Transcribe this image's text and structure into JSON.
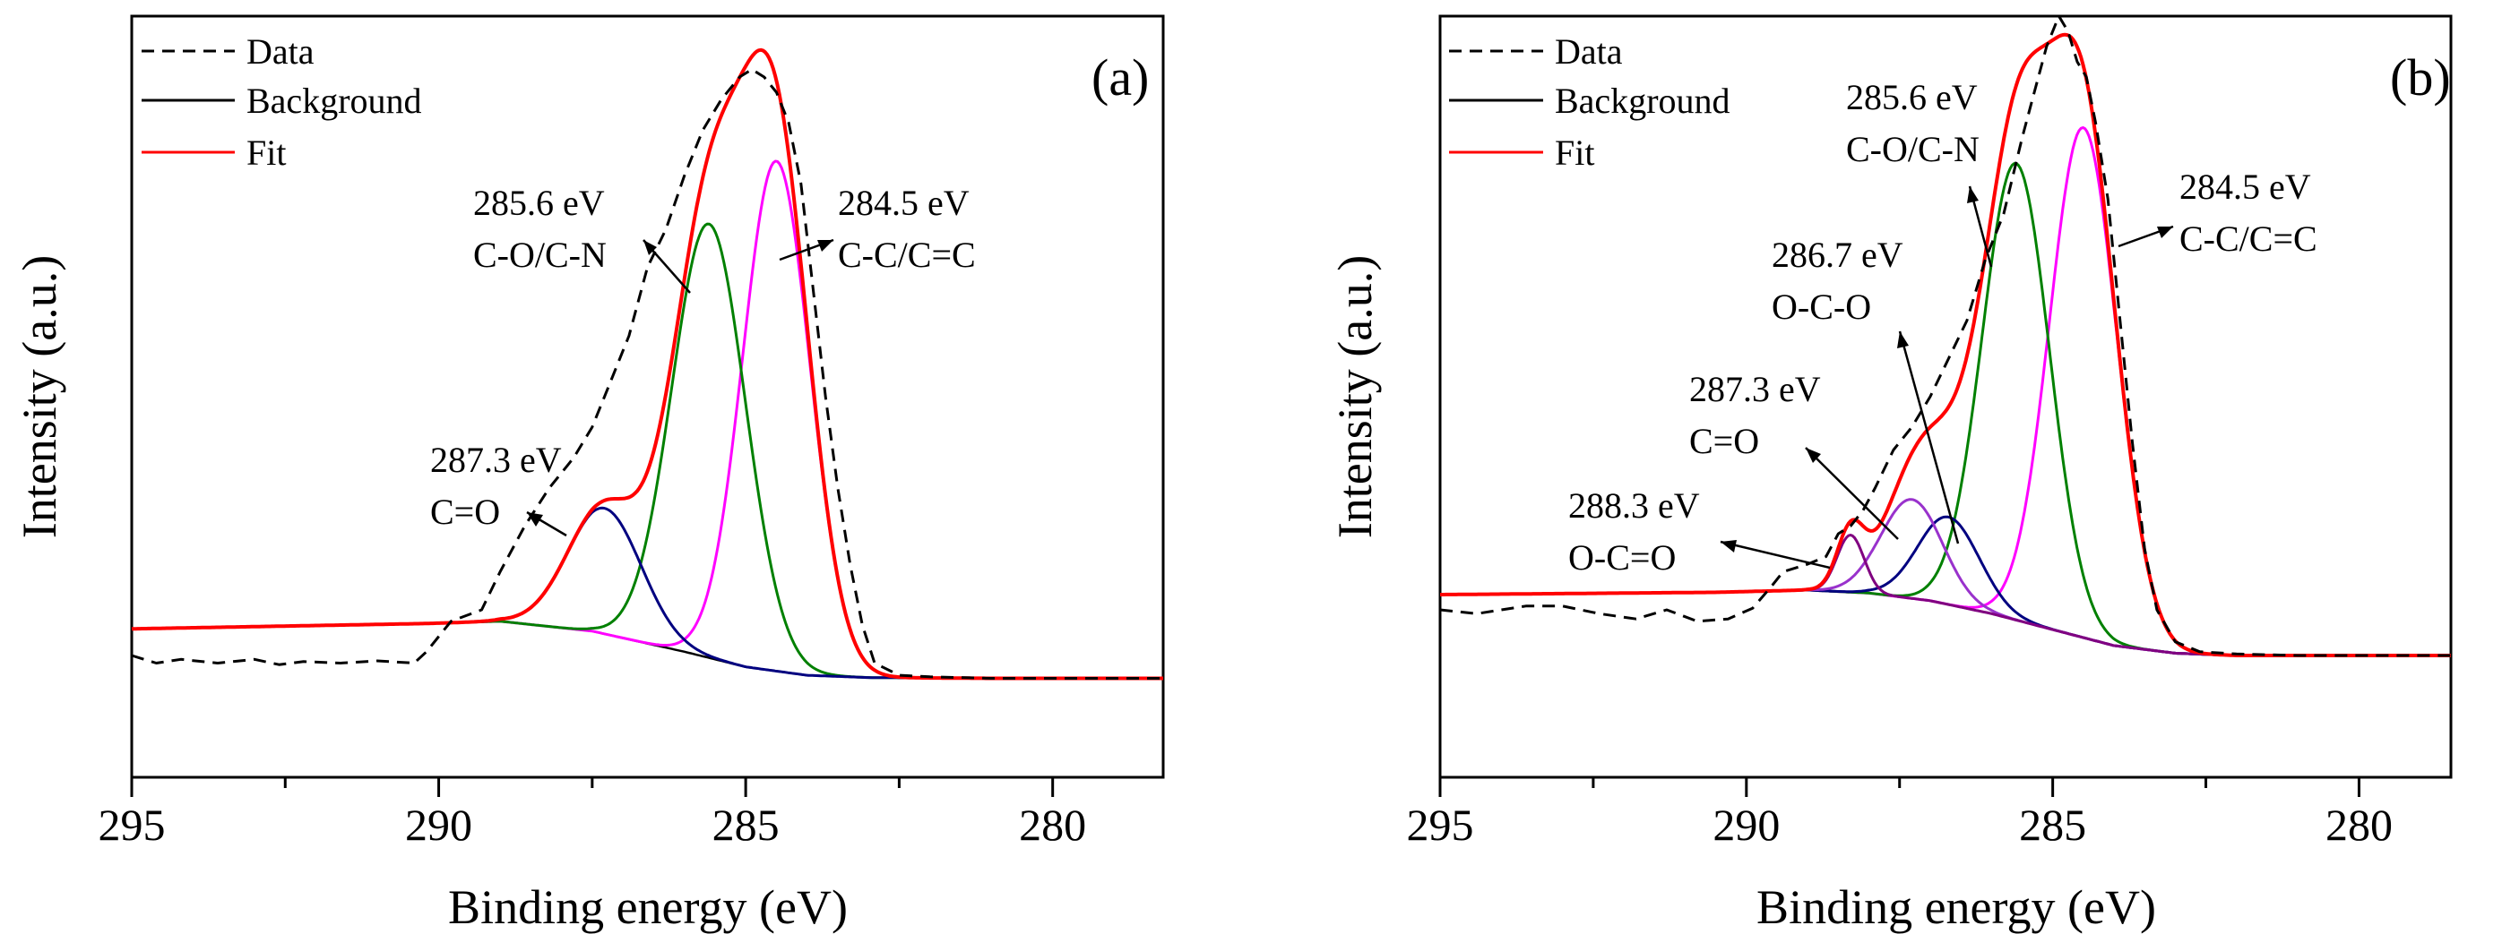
{
  "chart_data": [
    {
      "type": "line",
      "panel_label": "(a)",
      "xlabel": "Binding energy (eV)",
      "ylabel": "Intensity (a.u.)",
      "xlim": [
        295,
        278.2
      ],
      "ylim": [
        0,
        100
      ],
      "x_reversed": true,
      "xticks": [
        295,
        290,
        285,
        280
      ],
      "xtick_labels": [
        "295",
        "290",
        "285",
        "280"
      ],
      "legend": {
        "position": "top-left",
        "entries": [
          {
            "label": "Data",
            "style": "dashed",
            "color": "#000000"
          },
          {
            "label": "Background",
            "style": "solid",
            "color": "#000000"
          },
          {
            "label": "Fit",
            "style": "solid",
            "color": "#ff0000"
          }
        ]
      },
      "background": {
        "x": [
          295,
          290.2,
          289,
          287.5,
          286,
          285,
          284,
          283,
          281,
          278.2
        ],
        "y": [
          19.5,
          20.2,
          20.5,
          19.2,
          16.5,
          14.5,
          13.4,
          13.1,
          13.0,
          13.0
        ]
      },
      "peaks": [
        {
          "name": "C-C/C=C",
          "center": 284.5,
          "amplitude": 67,
          "sigma": 0.55,
          "color": "#ff00ff"
        },
        {
          "name": "C-O/C-N",
          "center": 285.6,
          "amplitude": 57,
          "sigma": 0.6,
          "color": "#008000"
        },
        {
          "name": "C=O",
          "center": 287.3,
          "amplitude": 16.5,
          "sigma": 0.6,
          "color": "#000080"
        }
      ],
      "fit_color": "#ff0000",
      "data_points": {
        "x": [
          295,
          294.6,
          294.2,
          293.6,
          293,
          292.6,
          292.2,
          291.6,
          291,
          290.4,
          290.2,
          289.8,
          289.3,
          289,
          288.6,
          288.2,
          287.8,
          287.5,
          287.2,
          286.9,
          286.6,
          286.3,
          286.0,
          285.7,
          285.4,
          285.1,
          284.9,
          284.7,
          284.5,
          284.3,
          284.1,
          283.9,
          283.7,
          283.5,
          283.3,
          283.1,
          282.9,
          282.5,
          282,
          281,
          280,
          278.2
        ],
        "y": [
          16,
          15,
          15.5,
          15,
          15.5,
          14.8,
          15.2,
          15,
          15.3,
          15,
          16.5,
          20.5,
          22,
          27,
          33,
          38,
          42,
          46,
          52,
          58,
          67,
          72,
          79,
          85,
          89,
          92,
          93,
          92,
          90,
          86,
          78,
          64,
          50,
          38,
          28,
          20,
          15,
          13.4,
          13.2,
          13,
          13,
          13
        ]
      },
      "annotations": [
        {
          "energy": "287.3 eV",
          "assignment": "C=O"
        },
        {
          "energy": "285.6 eV",
          "assignment": "C-O/C-N"
        },
        {
          "energy": "284.5 eV",
          "assignment": "C-C/C=C"
        }
      ]
    },
    {
      "type": "line",
      "panel_label": "(b)",
      "xlabel": "Binding energy (eV)",
      "ylabel": "Intensity (a.u.)",
      "xlim": [
        295,
        278.5
      ],
      "ylim": [
        0,
        100
      ],
      "x_reversed": true,
      "xticks": [
        295,
        290,
        285,
        280
      ],
      "xtick_labels": [
        "295",
        "290",
        "285",
        "280"
      ],
      "legend": {
        "position": "top-left",
        "entries": [
          {
            "label": "Data",
            "style": "dashed",
            "color": "#000000"
          },
          {
            "label": "Background",
            "style": "solid",
            "color": "#000000"
          },
          {
            "label": "Fit",
            "style": "solid",
            "color": "#ff0000"
          }
        ]
      },
      "background": {
        "x": [
          295,
          290.5,
          289,
          288,
          287,
          286,
          285,
          284,
          283,
          282,
          280,
          278.5
        ],
        "y": [
          24,
          24.3,
          24.6,
          24.2,
          23.2,
          21.5,
          19.4,
          17.3,
          16.3,
          16.0,
          16.0,
          16.0
        ]
      },
      "peaks": [
        {
          "name": "C-C/C=C",
          "center": 284.5,
          "amplitude": 67,
          "sigma": 0.55,
          "color": "#ff00ff"
        },
        {
          "name": "C-O/C-N",
          "center": 285.6,
          "amplitude": 60,
          "sigma": 0.55,
          "color": "#008000"
        },
        {
          "name": "O-C-O",
          "center": 286.7,
          "amplitude": 11.5,
          "sigma": 0.5,
          "color": "#000080"
        },
        {
          "name": "C=O",
          "center": 287.3,
          "amplitude": 13,
          "sigma": 0.5,
          "color": "#9932cc"
        },
        {
          "name": "O-C=O",
          "center": 288.3,
          "amplitude": 7.5,
          "sigma": 0.22,
          "color": "#800080"
        }
      ],
      "fit_color": "#ff0000",
      "data_points": {
        "x": [
          295,
          294.4,
          293.6,
          293,
          292.4,
          291.8,
          291.3,
          290.8,
          290.3,
          289.9,
          289.6,
          289.4,
          289,
          288.7,
          288.5,
          288.3,
          288.1,
          287.9,
          287.6,
          287.3,
          287.0,
          286.7,
          286.4,
          286.1,
          285.8,
          285.5,
          285.3,
          285.1,
          284.9,
          284.75,
          284.6,
          284.45,
          284.3,
          284.1,
          283.9,
          283.7,
          283.5,
          283.3,
          283.0,
          282.6,
          282,
          281,
          280,
          278.5
        ],
        "y": [
          22,
          21.5,
          22.5,
          22.5,
          21.5,
          20.8,
          22,
          20.5,
          20.8,
          22.2,
          25,
          27,
          28,
          29,
          32,
          33,
          35,
          38,
          43,
          46,
          50,
          55,
          60,
          68,
          74,
          84,
          90,
          96,
          100,
          98,
          94,
          92,
          86,
          76,
          60,
          44,
          30,
          22,
          17.8,
          16.5,
          16.2,
          16,
          16,
          16
        ]
      },
      "annotations": [
        {
          "energy": "288.3 eV",
          "assignment": "O-C=O"
        },
        {
          "energy": "287.3 eV",
          "assignment": "C=O"
        },
        {
          "energy": "286.7 eV",
          "assignment": "O-C-O"
        },
        {
          "energy": "285.6 eV",
          "assignment": "C-O/C-N"
        },
        {
          "energy": "284.5 eV",
          "assignment": "C-C/C=C"
        }
      ]
    }
  ]
}
